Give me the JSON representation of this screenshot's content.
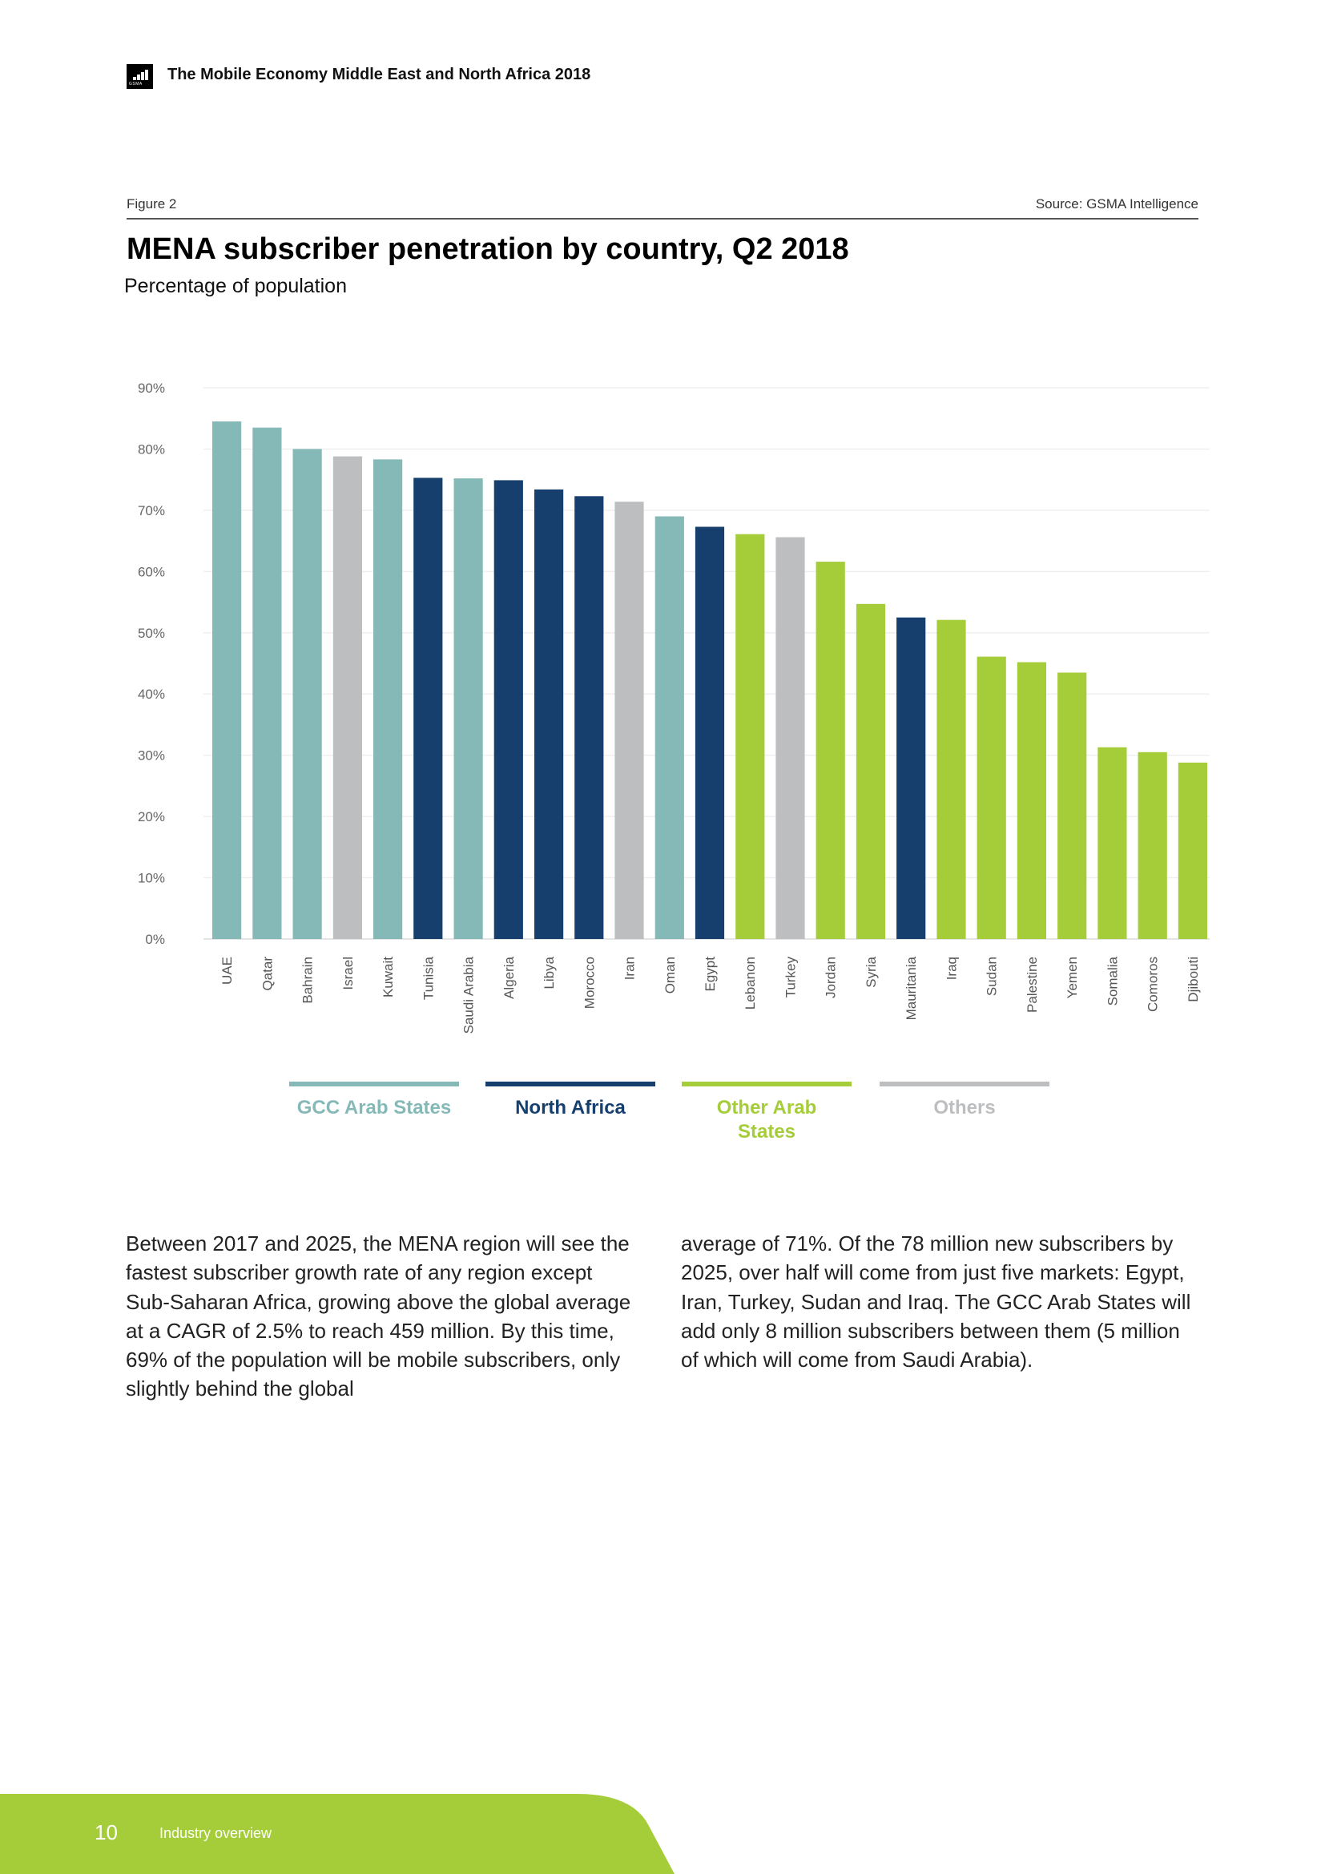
{
  "header": {
    "logo_text": "GSMA",
    "title": "The Mobile Economy Middle East and North Africa 2018"
  },
  "figure": {
    "label": "Figure 2",
    "source": "Source: GSMA Intelligence",
    "title": "MENA subscriber penetration by country, Q2 2018",
    "subtitle": "Percentage of population"
  },
  "chart_data": {
    "type": "bar",
    "title": "MENA subscriber penetration by country, Q2 2018",
    "subtitle": "Percentage of population",
    "categories": [
      "UAE",
      "Qatar",
      "Bahrain",
      "Israel",
      "Kuwait",
      "Tunisia",
      "Saudi Arabia",
      "Algeria",
      "Libya",
      "Morocco",
      "Iran",
      "Oman",
      "Egypt",
      "Lebanon",
      "Turkey",
      "Jordan",
      "Syria",
      "Mauritania",
      "Iraq",
      "Sudan",
      "Palestine",
      "Yemen",
      "Somalia",
      "Comoros",
      "Djibouti"
    ],
    "values": [
      84.5,
      83.5,
      80,
      78.8,
      78.3,
      75.3,
      75.2,
      74.9,
      73.4,
      72.3,
      71.4,
      69,
      67.3,
      66.1,
      65.6,
      61.6,
      54.7,
      52.5,
      52.1,
      46.1,
      45.2,
      43.5,
      31.3,
      30.5,
      28.8
    ],
    "groups": [
      "GCC Arab States",
      "GCC Arab States",
      "GCC Arab States",
      "Others",
      "GCC Arab States",
      "North Africa",
      "GCC Arab States",
      "North Africa",
      "North Africa",
      "North Africa",
      "Others",
      "GCC Arab States",
      "North Africa",
      "Other Arab States",
      "Others",
      "Other Arab States",
      "Other Arab States",
      "North Africa",
      "Other Arab States",
      "Other Arab States",
      "Other Arab States",
      "Other Arab States",
      "Other Arab States",
      "Other Arab States",
      "Other Arab States"
    ],
    "ylim": [
      0,
      90
    ],
    "yticks": [
      "0%",
      "10%",
      "20%",
      "30%",
      "40%",
      "50%",
      "60%",
      "70%",
      "80%",
      "90%"
    ],
    "grid": true,
    "legend_position": "bottom",
    "legend": [
      {
        "name": "GCC Arab States",
        "color": "#84b9b7"
      },
      {
        "name": "North Africa",
        "color": "#163f6e"
      },
      {
        "name": "Other Arab States",
        "color": "#a5cd39"
      },
      {
        "name": "Others",
        "color": "#bdbec0"
      }
    ]
  },
  "body": {
    "left": "Between 2017 and 2025, the MENA region will see the fastest subscriber growth rate of any region except Sub-Saharan Africa, growing above the global average at a CAGR of 2.5% to reach 459 million. By this time, 69% of the population will be mobile subscribers, only slightly behind the global",
    "right": "average of 71%. Of the 78 million new subscribers by 2025, over half will come from just five markets: Egypt, Iran, Turkey, Sudan and Iraq. The GCC Arab States will add only 8 million subscribers between them (5 million of which will come from Saudi Arabia)."
  },
  "footer": {
    "page_number": "10",
    "section": "Industry overview",
    "color": "#a5cd39"
  }
}
